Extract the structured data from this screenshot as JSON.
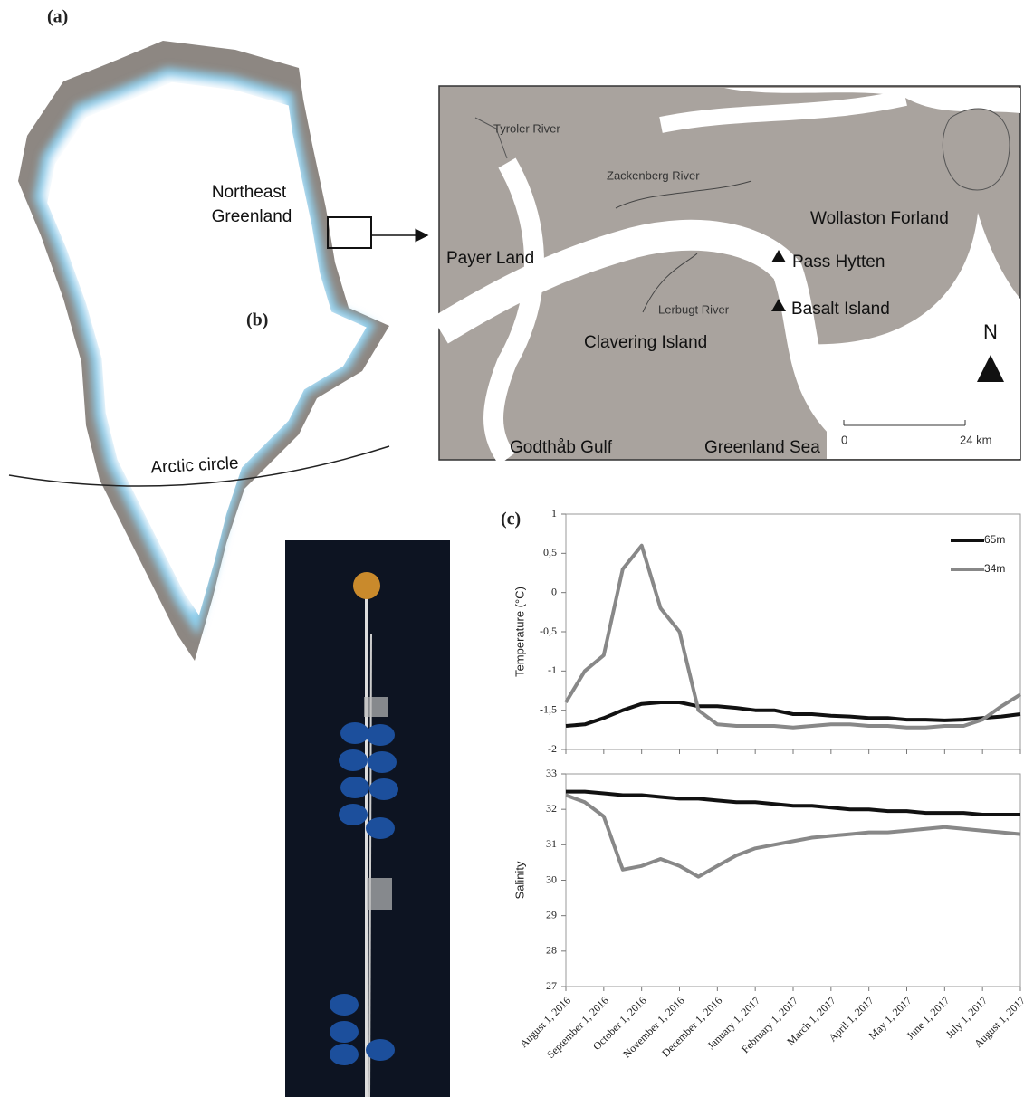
{
  "panel_labels": [
    "(a)",
    "(b)",
    "(c)"
  ],
  "greenland_map": {
    "region_label": [
      "Northeast",
      "Greenland"
    ],
    "circle_label": "Arctic circle"
  },
  "inset_map": {
    "labels": {
      "tyroler": "Tyroler River",
      "zackenberg": "Zackenberg River",
      "wollaston": "Wollaston Forland",
      "payer": "Payer Land",
      "pass": "Pass Hytten",
      "lerbugt": "Lerbugt River",
      "basalt": "Basalt Island",
      "clavering": "Clavering Island",
      "godthab": "Godthåb Gulf",
      "sea": "Greenland Sea"
    },
    "scale": {
      "start": "0",
      "end": "24 km"
    },
    "north": "N"
  },
  "chart_data": [
    {
      "type": "line",
      "y_label": "Temperature (°C)",
      "categories": [
        null,
        null,
        null,
        null,
        null,
        null,
        null,
        null,
        null,
        null,
        null,
        null,
        null,
        null,
        null,
        null,
        null,
        null,
        null,
        null,
        null,
        null,
        null,
        null,
        null
      ],
      "ylim": [
        -2,
        1
      ],
      "yticks": [
        1,
        {
          "value": 0.5,
          "label": "0,5"
        },
        0,
        {
          "value": -0.5,
          "label": "-0,5"
        },
        -1,
        {
          "value": -1.5,
          "label": "-1,5"
        },
        -2
      ],
      "legend": "top-right",
      "series": [
        {
          "name": "65m",
          "color": "#111111",
          "values": [
            -1.7,
            -1.68,
            -1.6,
            -1.5,
            -1.42,
            -1.4,
            -1.4,
            -1.45,
            -1.45,
            -1.47,
            -1.5,
            -1.5,
            -1.55,
            -1.55,
            -1.57,
            -1.58,
            -1.6,
            -1.6,
            -1.62,
            -1.62,
            -1.63,
            -1.62,
            -1.6,
            -1.58,
            -1.55
          ]
        },
        {
          "name": "34m",
          "color": "#888888",
          "values": [
            -1.4,
            -1.0,
            -0.8,
            0.3,
            0.6,
            -0.2,
            -0.5,
            -1.5,
            -1.68,
            -1.7,
            -1.7,
            -1.7,
            -1.72,
            -1.7,
            -1.68,
            -1.68,
            -1.7,
            -1.7,
            -1.72,
            -1.72,
            -1.7,
            -1.7,
            -1.62,
            -1.45,
            -1.3
          ]
        }
      ]
    },
    {
      "type": "line",
      "y_label": "Salinity",
      "categories": [
        "August 1, 2016",
        null,
        "September 1, 2016",
        null,
        "October 1, 2016",
        null,
        "November 1, 2016",
        null,
        "December 1, 2016",
        null,
        "January 1, 2017",
        null,
        "February 1, 2017",
        null,
        "March 1, 2017",
        null,
        "April 1, 2017",
        null,
        "May 1, 2017",
        null,
        "June 1, 2017",
        null,
        "July 1, 2017",
        null,
        "August 1, 2017"
      ],
      "ylim": [
        27,
        33
      ],
      "yticks": [
        27,
        28,
        29,
        30,
        31,
        32,
        33
      ],
      "series": [
        {
          "name": "65m",
          "color": "#111111",
          "values": [
            32.5,
            32.5,
            32.45,
            32.4,
            32.4,
            32.35,
            32.3,
            32.3,
            32.25,
            32.2,
            32.2,
            32.15,
            32.1,
            32.1,
            32.05,
            32.0,
            32.0,
            31.95,
            31.95,
            31.9,
            31.9,
            31.9,
            31.85,
            31.85,
            31.85
          ]
        },
        {
          "name": "34m",
          "color": "#888888",
          "values": [
            32.4,
            32.2,
            31.8,
            30.3,
            30.4,
            30.6,
            30.4,
            30.1,
            30.4,
            30.7,
            30.9,
            31.0,
            31.1,
            31.2,
            31.25,
            31.3,
            31.35,
            31.35,
            31.4,
            31.45,
            31.5,
            31.45,
            31.4,
            31.35,
            31.3
          ]
        }
      ]
    }
  ]
}
